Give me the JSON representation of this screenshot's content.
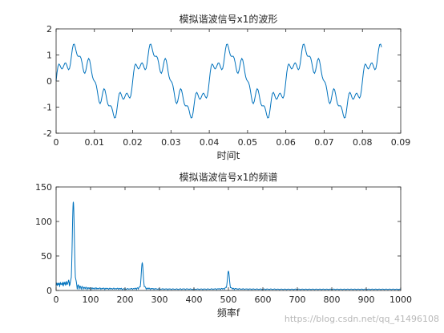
{
  "chart_data": [
    {
      "type": "line",
      "title": "模拟谐波信号x1的波形",
      "xlabel": "时间t",
      "ylabel": "",
      "xlim": [
        0,
        0.09
      ],
      "ylim": [
        -2,
        2
      ],
      "xticks": [
        "0",
        "0.01",
        "0.02",
        "0.03",
        "0.04",
        "0.05",
        "0.06",
        "0.07",
        "0.08",
        "0.09"
      ],
      "yticks": [
        "-2",
        "-1",
        "0",
        "1",
        "2"
      ],
      "grid": false,
      "series": [
        {
          "color": "#0072bd",
          "signal": "sin(2π·50t) + 0.3·sin(2π·250t) + 0.2·sin(2π·500t)",
          "t_range": [
            0,
            0.085
          ],
          "fs": 4000
        }
      ]
    },
    {
      "type": "line",
      "title": "模拟谐波信号x1的频谱",
      "xlabel": "频率f",
      "ylabel": "",
      "xlim": [
        0,
        1000
      ],
      "ylim": [
        0,
        150
      ],
      "xticks": [
        "0",
        "100",
        "200",
        "300",
        "400",
        "500",
        "600",
        "700",
        "800",
        "900",
        "1000"
      ],
      "yticks": [
        "0",
        "50",
        "100",
        "150"
      ],
      "grid": false,
      "peaks": [
        {
          "frequency": 50,
          "magnitude": 127
        },
        {
          "frequency": 250,
          "magnitude": 38
        },
        {
          "frequency": 500,
          "magnitude": 26
        }
      ],
      "series": [
        {
          "color": "#0072bd",
          "frequency_range": [
            0,
            1000
          ]
        }
      ]
    }
  ],
  "watermark": "https://blog.csdn.net/qq_41496108"
}
